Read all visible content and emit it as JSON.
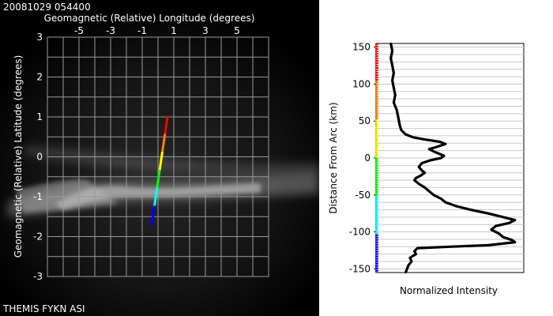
{
  "header": {
    "timestamp": "20081029 054400"
  },
  "footer": {
    "instrument": "THEMIS FYKN ASI"
  },
  "colors": {
    "image_background": "#000000",
    "grid": "#9a9a9a",
    "profile_line": "#000000",
    "scale_bar": [
      "#ff0000",
      "#ff8000",
      "#ffff00",
      "#00ff00",
      "#00ffff",
      "#0000ff"
    ]
  },
  "chart_data": [
    {
      "type": "image",
      "title": "",
      "xlabel": "Geomagnetic (Relative) Longitude (degrees)",
      "ylabel": "Geomagnetic (Relative) Latitude (degrees)",
      "xlim": [
        -7,
        7
      ],
      "ylim": [
        -3,
        3
      ],
      "x_ticks": [
        "-5",
        "-3",
        "-1",
        "1",
        "3",
        "5"
      ],
      "y_ticks": [
        "3",
        "2",
        "1",
        "0",
        "-1",
        "-2",
        "-3"
      ],
      "grid": true,
      "scan_line": {
        "start": {
          "lon": 0.6,
          "lat": 1.0
        },
        "end": {
          "lon": -0.4,
          "lat": -1.7
        }
      }
    },
    {
      "type": "line",
      "title": "",
      "xlabel": "Normalized Intensity",
      "ylabel": "Distance From Arc (km)",
      "xlim": [
        0,
        1
      ],
      "ylim": [
        -155,
        155
      ],
      "y_ticks": [
        "150",
        "100",
        "50",
        "0",
        "-50",
        "-100",
        "-150"
      ],
      "grid": true,
      "series": [
        {
          "points": [
            {
              "y": 155,
              "x": 0.1
            },
            {
              "y": 145,
              "x": 0.11
            },
            {
              "y": 135,
              "x": 0.1
            },
            {
              "y": 125,
              "x": 0.11
            },
            {
              "y": 115,
              "x": 0.12
            },
            {
              "y": 105,
              "x": 0.11
            },
            {
              "y": 95,
              "x": 0.12
            },
            {
              "y": 85,
              "x": 0.13
            },
            {
              "y": 75,
              "x": 0.12
            },
            {
              "y": 65,
              "x": 0.14
            },
            {
              "y": 55,
              "x": 0.15
            },
            {
              "y": 45,
              "x": 0.16
            },
            {
              "y": 38,
              "x": 0.17
            },
            {
              "y": 32,
              "x": 0.2
            },
            {
              "y": 28,
              "x": 0.25
            },
            {
              "y": 25,
              "x": 0.33
            },
            {
              "y": 22,
              "x": 0.43
            },
            {
              "y": 19,
              "x": 0.47
            },
            {
              "y": 15,
              "x": 0.41
            },
            {
              "y": 12,
              "x": 0.36
            },
            {
              "y": 8,
              "x": 0.4
            },
            {
              "y": 3,
              "x": 0.46
            },
            {
              "y": 0,
              "x": 0.44
            },
            {
              "y": -3,
              "x": 0.37
            },
            {
              "y": -7,
              "x": 0.31
            },
            {
              "y": -12,
              "x": 0.29
            },
            {
              "y": -17,
              "x": 0.31
            },
            {
              "y": -20,
              "x": 0.33
            },
            {
              "y": -24,
              "x": 0.3
            },
            {
              "y": -27,
              "x": 0.27
            },
            {
              "y": -30,
              "x": 0.26
            },
            {
              "y": -35,
              "x": 0.29
            },
            {
              "y": -40,
              "x": 0.33
            },
            {
              "y": -45,
              "x": 0.36
            },
            {
              "y": -50,
              "x": 0.39
            },
            {
              "y": -55,
              "x": 0.44
            },
            {
              "y": -60,
              "x": 0.47
            },
            {
              "y": -65,
              "x": 0.54
            },
            {
              "y": -70,
              "x": 0.64
            },
            {
              "y": -75,
              "x": 0.76
            },
            {
              "y": -80,
              "x": 0.86
            },
            {
              "y": -84,
              "x": 0.94
            },
            {
              "y": -88,
              "x": 0.9
            },
            {
              "y": -92,
              "x": 0.81
            },
            {
              "y": -97,
              "x": 0.78
            },
            {
              "y": -102,
              "x": 0.83
            },
            {
              "y": -107,
              "x": 0.86
            },
            {
              "y": -111,
              "x": 0.92
            },
            {
              "y": -114,
              "x": 0.94
            },
            {
              "y": -118,
              "x": 0.76
            },
            {
              "y": -120,
              "x": 0.5
            },
            {
              "y": -122,
              "x": 0.28
            },
            {
              "y": -126,
              "x": 0.26
            },
            {
              "y": -130,
              "x": 0.27
            },
            {
              "y": -135,
              "x": 0.23
            },
            {
              "y": -140,
              "x": 0.24
            },
            {
              "y": -145,
              "x": 0.22
            },
            {
              "y": -150,
              "x": 0.21
            },
            {
              "y": -155,
              "x": 0.2
            }
          ]
        }
      ]
    }
  ]
}
